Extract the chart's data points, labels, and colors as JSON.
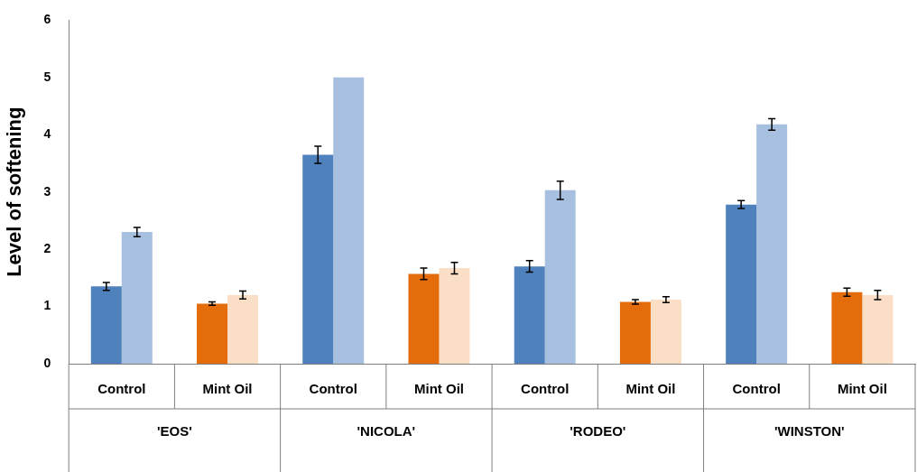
{
  "chart_data": {
    "type": "bar",
    "ylabel": "Level of softening",
    "categories": [
      "Control",
      "Mint Oil",
      "Control",
      "Mint Oil",
      "Control",
      "Mint Oil",
      "Control",
      "Mint Oil"
    ],
    "annotations": [
      "'EOS'",
      "'NICOLA'",
      "'RODEO'",
      "'WINSTON'"
    ],
    "series": [
      {
        "colors": [
          "#4f81bd",
          "#e46c0a",
          "#4f81bd",
          "#e46c0a",
          "#4f81bd",
          "#e46c0a",
          "#4f81bd",
          "#e46c0a"
        ],
        "values": [
          1.35,
          1.05,
          3.65,
          1.57,
          1.7,
          1.08,
          2.78,
          1.25
        ],
        "errors": [
          0.07,
          0.03,
          0.15,
          0.1,
          0.1,
          0.04,
          0.07,
          0.07
        ]
      },
      {
        "colors": [
          "#a7c0df",
          "#fbdec6",
          "#a7c0df",
          "#fbdec6",
          "#a7c0df",
          "#fbdec6",
          "#a7c0df",
          "#fbdec6"
        ],
        "values": [
          2.3,
          1.2,
          5.0,
          1.67,
          3.03,
          1.12,
          4.18,
          1.2
        ],
        "errors": [
          0.08,
          0.07,
          null,
          0.1,
          0.16,
          0.05,
          0.1,
          0.08
        ]
      }
    ],
    "ylim": [
      0,
      6
    ],
    "yticks": [
      0,
      1,
      2,
      3,
      4,
      5,
      6
    ],
    "grid": false,
    "legend": false
  }
}
